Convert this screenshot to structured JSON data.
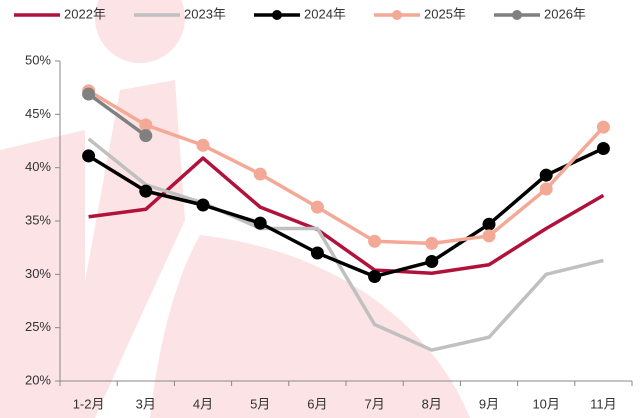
{
  "chart_data": {
    "type": "line",
    "categories": [
      "1-2月",
      "3月",
      "4月",
      "5月",
      "6月",
      "7月",
      "8月",
      "9月",
      "10月",
      "11月"
    ],
    "series": [
      {
        "name": "2022年",
        "color": "#b0123b",
        "marker": false,
        "values": [
          35.4,
          36.1,
          40.9,
          36.3,
          34.2,
          30.4,
          30.1,
          30.9,
          34.3,
          37.4
        ]
      },
      {
        "name": "2023年",
        "color": "#c0c0c0",
        "marker": false,
        "values": [
          42.7,
          38.4,
          36.7,
          34.3,
          34.3,
          25.3,
          22.9,
          24.1,
          30.0,
          31.3
        ]
      },
      {
        "name": "2024年",
        "color": "#000000",
        "marker": true,
        "values": [
          41.1,
          37.8,
          36.5,
          34.8,
          32.0,
          29.8,
          31.2,
          34.7,
          39.3,
          41.8
        ]
      },
      {
        "name": "2025年",
        "color": "#f4a896",
        "marker": true,
        "values": [
          47.2,
          44.0,
          42.1,
          39.4,
          36.3,
          33.1,
          32.9,
          33.6,
          38.0,
          43.8
        ]
      },
      {
        "name": "2026年",
        "color": "#808080",
        "marker": true,
        "values": [
          46.9,
          43.0,
          null,
          null,
          null,
          null,
          null,
          null,
          null,
          null
        ]
      }
    ],
    "ylim": [
      20,
      50
    ],
    "yticks": [
      {
        "value": 20,
        "label": "20%"
      },
      {
        "value": 25,
        "label": "25%"
      },
      {
        "value": 30,
        "label": "30%"
      },
      {
        "value": 35,
        "label": "35%"
      },
      {
        "value": 40,
        "label": "40%"
      },
      {
        "value": 45,
        "label": "45%"
      },
      {
        "value": 50,
        "label": "50%"
      }
    ],
    "grid": false
  }
}
